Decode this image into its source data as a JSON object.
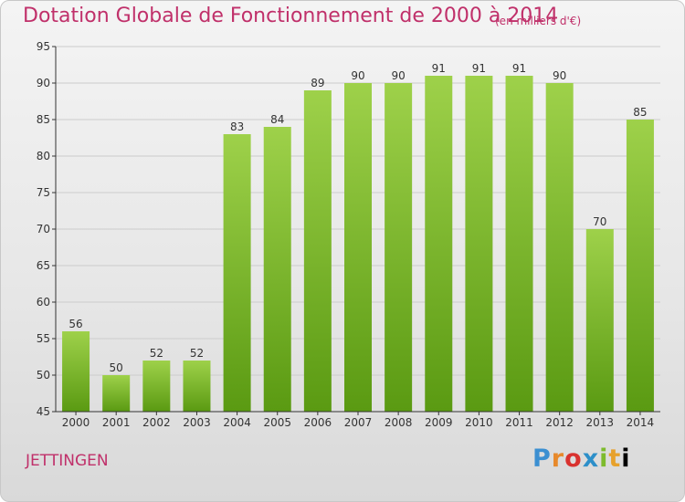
{
  "header": {
    "title": "Dotation Globale de Fonctionnement de 2000 à 2014",
    "subtitle": "(en milliers d'€)"
  },
  "footer": {
    "town": "JETTINGEN",
    "brand": "Proxiti"
  },
  "colors": {
    "title": "#c0306a",
    "bar_light": "#9ed14a",
    "bar_dark": "#5a9a12",
    "axis": "#333333",
    "grid": "#cccccc"
  },
  "chart_data": {
    "type": "bar",
    "categories": [
      "2000",
      "2001",
      "2002",
      "2003",
      "2004",
      "2005",
      "2006",
      "2007",
      "2008",
      "2009",
      "2010",
      "2011",
      "2012",
      "2013",
      "2014"
    ],
    "values": [
      56,
      50,
      52,
      52,
      83,
      84,
      89,
      90,
      90,
      91,
      91,
      91,
      90,
      70,
      85
    ],
    "title": "Dotation Globale de Fonctionnement de 2000 à 2014",
    "subtitle": "(en milliers d'€)",
    "xlabel": "",
    "ylabel": "",
    "ylim": [
      45,
      95
    ],
    "yticks": [
      45,
      50,
      55,
      60,
      65,
      70,
      75,
      80,
      85,
      90,
      95
    ],
    "grid": true,
    "data_labels": true
  }
}
